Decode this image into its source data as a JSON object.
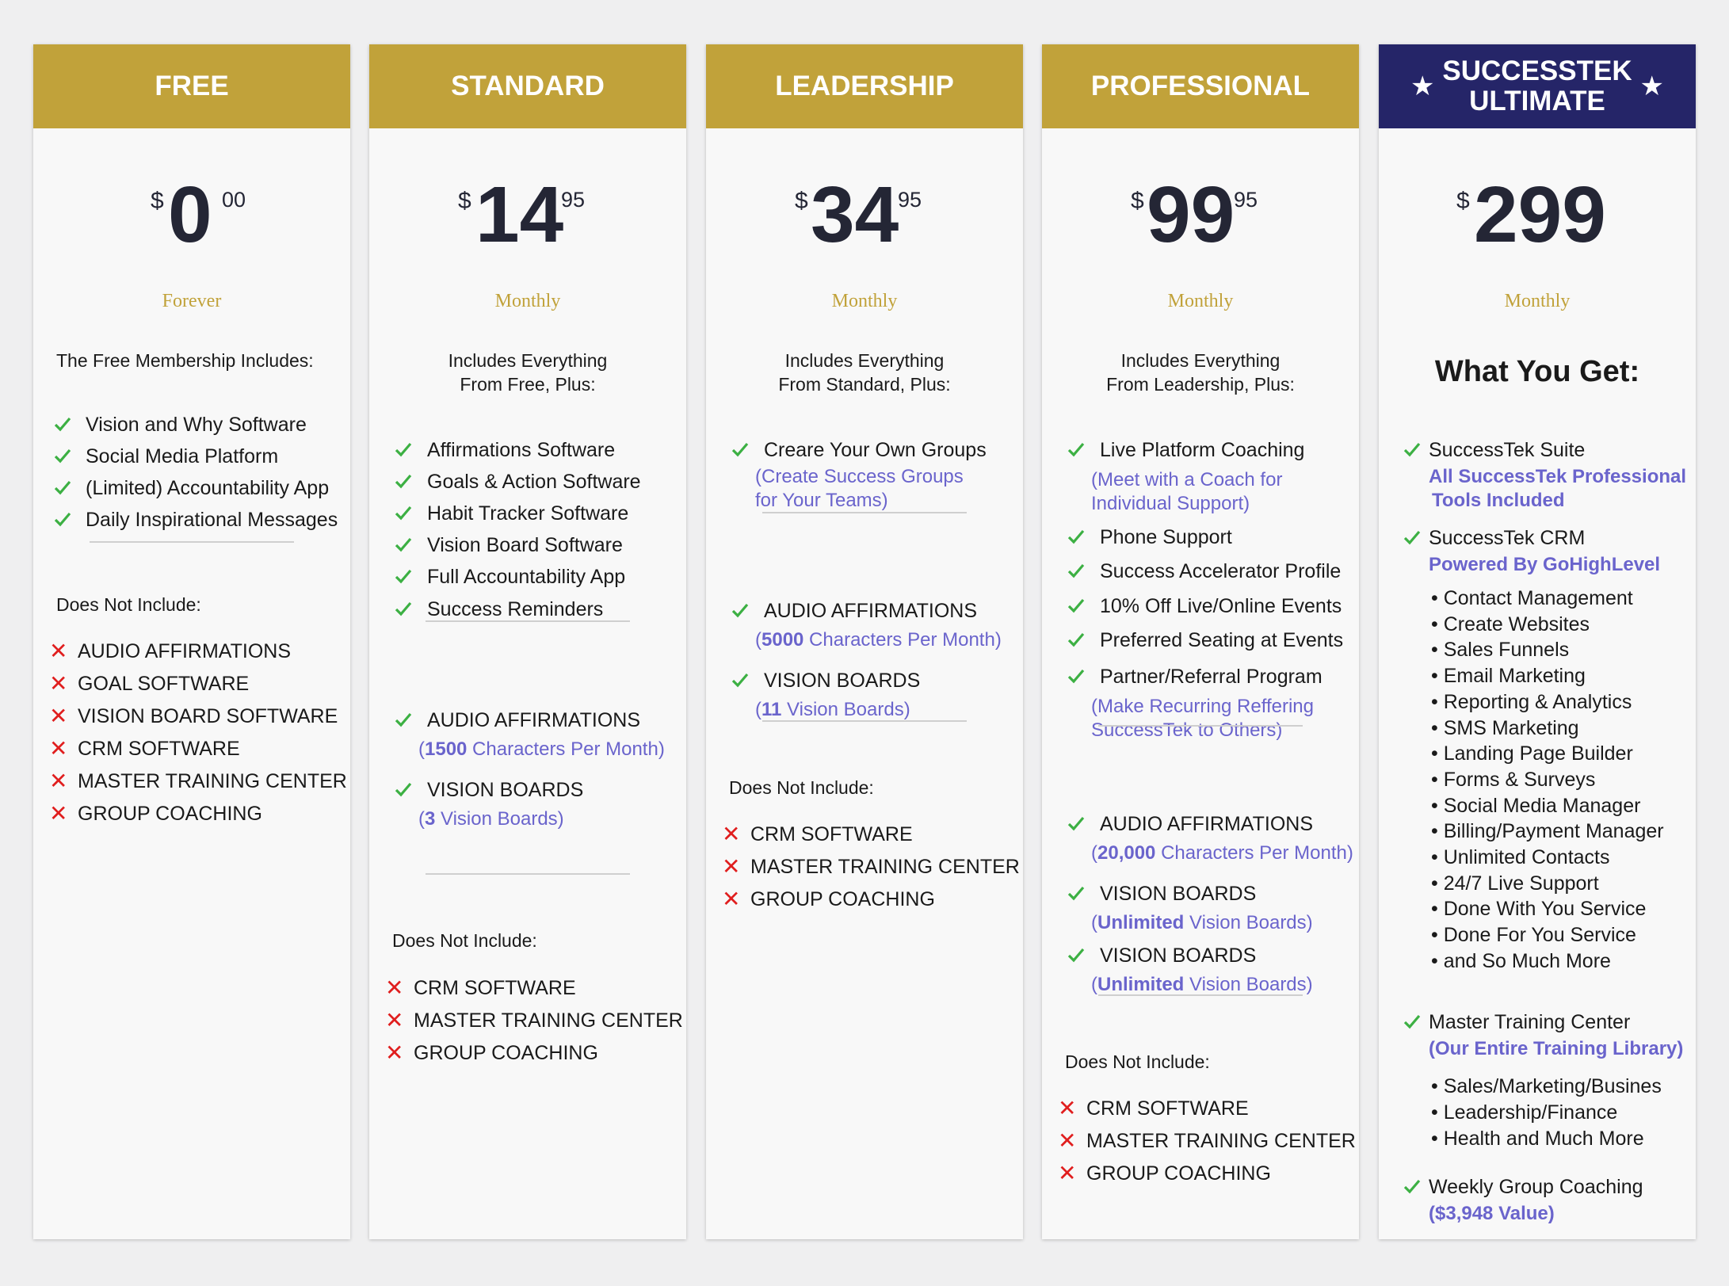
{
  "plans": {
    "free": {
      "name": "FREE",
      "currency": "$",
      "price": "0",
      "cents": "00",
      "period": "Forever",
      "intro": "The Free Membership Includes:",
      "features": [
        "Vision and Why Software",
        "Social Media Platform",
        "(Limited) Accountability App",
        "Daily Inspirational Messages"
      ],
      "not_include_label": "Does Not Include:",
      "excluded": [
        "AUDIO AFFIRMATIONS",
        "GOAL SOFTWARE",
        "VISION BOARD SOFTWARE",
        "CRM SOFTWARE",
        "MASTER TRAINING CENTER",
        "GROUP COACHING"
      ]
    },
    "standard": {
      "name": "STANDARD",
      "currency": "$",
      "price": "14",
      "cents": "95",
      "period": "Monthly",
      "intro_1": "Includes Everything",
      "intro_2": "From Free, Plus:",
      "features": [
        "Affirmations Software",
        "Goals & Action Software",
        "Habit Tracker Software",
        "Vision Board Software",
        "Full Accountability App",
        "Success Reminders"
      ],
      "audio_label": "AUDIO AFFIRMATIONS",
      "audio_open": "(",
      "audio_num": "1500",
      "audio_rest": " Characters Per Month)",
      "boards_label": "VISION BOARDS",
      "boards_open": "(",
      "boards_num": "3",
      "boards_rest": " Vision Boards)",
      "not_include_label": "Does Not Include:",
      "excluded": [
        "CRM SOFTWARE",
        "MASTER TRAINING CENTER",
        "GROUP COACHING"
      ]
    },
    "leadership": {
      "name": "LEADERSHIP",
      "currency": "$",
      "price": "34",
      "cents": "95",
      "period": "Monthly",
      "intro_1": "Includes Everything",
      "intro_2": "From Standard, Plus:",
      "feature_1": "Creare Your Own Groups",
      "feature_1_note_1": "(Create Success Groups",
      "feature_1_note_2": "for Your Teams)",
      "audio_label": "AUDIO AFFIRMATIONS",
      "audio_open": "(",
      "audio_num": "5000",
      "audio_rest": " Characters Per Month)",
      "boards_label": "VISION BOARDS",
      "boards_open": "(",
      "boards_num": "11",
      "boards_rest": " Vision Boards)",
      "not_include_label": "Does Not Include:",
      "excluded": [
        "CRM SOFTWARE",
        "MASTER TRAINING CENTER",
        "GROUP COACHING"
      ]
    },
    "professional": {
      "name": "PROFESSIONAL",
      "currency": "$",
      "price": "99",
      "cents": "95",
      "period": "Monthly",
      "intro_1": "Includes Everything",
      "intro_2": "From Leadership, Plus:",
      "coaching": "Live Platform Coaching",
      "coaching_note_1": "(Meet with a Coach for",
      "coaching_note_2": "Individual Support)",
      "features": [
        "Phone Support",
        "Success Accelerator Profile",
        "10% Off Live/Online Events",
        "Preferred Seating at Events",
        "Partner/Referral Program"
      ],
      "referral_note_1": "(Make Recurring Reffering",
      "referral_note_2": "SuccessTek to Others)",
      "audio_label": "AUDIO AFFIRMATIONS",
      "audio_open": "(",
      "audio_num": "20,000",
      "audio_rest": " Characters Per Month)",
      "boards_label": "VISION BOARDS",
      "boards_open": "(",
      "boards_num": "Unlimited",
      "boards_rest": " Vision Boards)",
      "boards2_label": "VISION BOARDS",
      "boards2_open": "(",
      "boards2_num": "Unlimited",
      "boards2_rest": " Vision Boards)",
      "not_include_label": "Does Not Include:",
      "excluded": [
        "CRM SOFTWARE",
        "MASTER TRAINING CENTER",
        "GROUP COACHING"
      ]
    },
    "ultimate": {
      "name_1": "SUCCESSTEK",
      "name_2": "ULTIMATE",
      "currency": "$",
      "price": "299",
      "period": "Monthly",
      "heading": "What You Get:",
      "suite": "SuccessTek Suite",
      "suite_note_1": "All SuccessTek Professional",
      "suite_note_2": "Tools Included",
      "crm": "SuccessTek CRM",
      "crm_note": "Powered By GoHighLevel",
      "crm_bullets": [
        "Contact Management",
        "Create Websites",
        "Sales Funnels",
        "Email Marketing",
        "Reporting & Analytics",
        "SMS Marketing",
        "Landing Page Builder",
        "Forms & Surveys",
        "Social Media Manager",
        "Billing/Payment Manager",
        "Unlimited Contacts",
        "24/7 Live Support",
        "Done With You Service",
        "Done For You Service",
        "and So Much More"
      ],
      "training": "Master Training Center",
      "training_note": "(Our Entire Training Library)",
      "training_bullets": [
        "Sales/Marketing/Busines",
        "Leadership/Finance",
        "Health and Much More"
      ],
      "coaching": "Weekly Group Coaching",
      "coaching_note": "($3,948 Value)"
    }
  },
  "colors": {
    "gold": "#c1a23a",
    "navy": "#252568",
    "check": "#3cb043",
    "cross": "#e01e1e",
    "note_blue": "#6a64cc"
  },
  "icons": {
    "check": "check-icon",
    "cross": "cross-icon",
    "star": "star-icon"
  }
}
